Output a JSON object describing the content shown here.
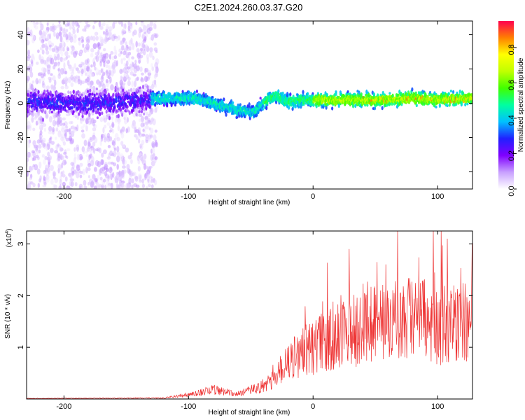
{
  "title": "C2E1.2024.260.03.37.G20",
  "chart_data": [
    {
      "type": "heatmap",
      "xlabel": "Height of straight line (km)",
      "ylabel": "Frequency (Hz)",
      "xlim": [
        -230,
        128
      ],
      "ylim": [
        -50,
        48
      ],
      "xticks": [
        -200,
        -100,
        0,
        100
      ],
      "yticks": [
        -40,
        -20,
        0,
        20,
        40
      ],
      "colorbar": {
        "label": "Normalized spectral amplitude",
        "range": [
          0,
          0.95
        ],
        "ticks": [
          0.0,
          0.2,
          0.4,
          0.6,
          0.8
        ],
        "colormap": [
          "#ffffff",
          "#c8a0ff",
          "#8000ff",
          "#2020ff",
          "#00c0ff",
          "#00ffa0",
          "#40ff00",
          "#c0ff00",
          "#ffff00",
          "#ff8000",
          "#ff0050"
        ]
      },
      "ridge": {
        "x": [
          -230,
          -200,
          -170,
          -140,
          -120,
          -100,
          -90,
          -80,
          -70,
          -60,
          -50,
          -45,
          -40,
          -35,
          -30,
          -20,
          -10,
          0,
          20,
          40,
          60,
          80,
          100,
          128
        ],
        "y": [
          1,
          0,
          0,
          2,
          3,
          3,
          2,
          0,
          -2,
          -4,
          -5,
          -4,
          0,
          3,
          4,
          1,
          2,
          2,
          2,
          2,
          2,
          3,
          2,
          3
        ]
      }
    },
    {
      "type": "line",
      "xlabel": "Height of straight line (km)",
      "ylabel": "SNR (10 * v/v)",
      "y_multiplier": "(x10",
      "y_multiplier_exp": "4",
      "xlim": [
        -230,
        128
      ],
      "ylim": [
        0,
        3.25
      ],
      "xticks": [
        -200,
        -100,
        0,
        100
      ],
      "yticks": [
        1,
        2,
        3
      ],
      "color": "#ee3333",
      "envelope": {
        "x": [
          -230,
          -120,
          -100,
          -80,
          -60,
          -40,
          -30,
          -20,
          -10,
          0,
          20,
          40,
          60,
          80,
          100,
          128
        ],
        "y": [
          0.01,
          0.02,
          0.08,
          0.18,
          0.1,
          0.25,
          0.5,
          0.7,
          0.9,
          1.0,
          1.2,
          1.45,
          1.55,
          1.55,
          1.45,
          1.5
        ]
      }
    }
  ]
}
